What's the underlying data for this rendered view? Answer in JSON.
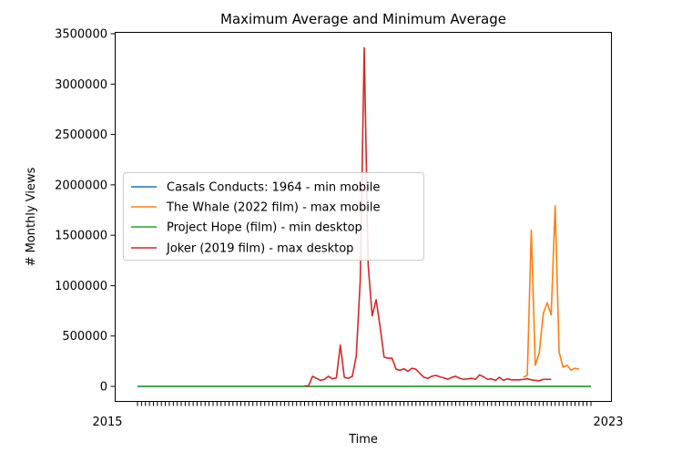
{
  "chart_data": {
    "type": "line",
    "title": "Maximum Average and Minimum Average",
    "xlabel": "Time",
    "ylabel": "# Monthly Views",
    "ylim": [
      -100000,
      3520000
    ],
    "yticks": [
      0,
      500000,
      1000000,
      1500000,
      2000000,
      2500000,
      3000000,
      3500000
    ],
    "ytick_labels": [
      "0",
      "500000",
      "1000000",
      "1500000",
      "2000000",
      "2500000",
      "3000000",
      "3500000"
    ],
    "x_count": 115,
    "x_first_label": "2015",
    "x_last_label": "2023",
    "grid": false,
    "legend_position": "center-left",
    "series": [
      {
        "name": "Casals Conducts: 1964 - min mobile",
        "color": "#1f77b4",
        "start": 0,
        "values": [
          0,
          0,
          0,
          0,
          0,
          0,
          0,
          0,
          0,
          0,
          0,
          0,
          0,
          0,
          0,
          0,
          0,
          0,
          0,
          0,
          0,
          0,
          0,
          0,
          0,
          0,
          0,
          0,
          0,
          0,
          0,
          0,
          0,
          0,
          0,
          0,
          0,
          0,
          0,
          0,
          0,
          0,
          0,
          0,
          0,
          0,
          0,
          0,
          0,
          0,
          0,
          0,
          0,
          0,
          0,
          0,
          0,
          0,
          0,
          0,
          0,
          0,
          0,
          0,
          0,
          0,
          0,
          0,
          0,
          0,
          0,
          0,
          0,
          0,
          0,
          0,
          0,
          0,
          0,
          0,
          0,
          0,
          0,
          0,
          0,
          0,
          0,
          0,
          0,
          0,
          0,
          0,
          0,
          0,
          0,
          0,
          0,
          0,
          0,
          0,
          0,
          0,
          0,
          0,
          0,
          0,
          0,
          0,
          0,
          0,
          0,
          0,
          0,
          0,
          0
        ]
      },
      {
        "name": "The Whale (2022 film) - max mobile",
        "color": "#ff7f0e",
        "start": 97,
        "values": [
          90000,
          110000,
          1550000,
          210000,
          330000,
          720000,
          830000,
          710000,
          1790000,
          340000,
          190000,
          210000,
          160000,
          180000,
          170000
        ]
      },
      {
        "name": "Project Hope (film) - min desktop",
        "color": "#2ca02c",
        "start": 0,
        "values": [
          0,
          0,
          0,
          0,
          0,
          0,
          0,
          0,
          0,
          0,
          0,
          0,
          0,
          0,
          0,
          0,
          0,
          0,
          0,
          0,
          0,
          0,
          0,
          0,
          0,
          0,
          0,
          0,
          0,
          0,
          0,
          0,
          0,
          0,
          0,
          0,
          0,
          0,
          0,
          0,
          0,
          0,
          0,
          0,
          0,
          0,
          0,
          0,
          0,
          0,
          0,
          0,
          0,
          0,
          0,
          0,
          0,
          0,
          0,
          0,
          0,
          0,
          0,
          0,
          0,
          0,
          0,
          0,
          0,
          0,
          0,
          0,
          0,
          0,
          0,
          0,
          0,
          0,
          0,
          0,
          0,
          0,
          0,
          0,
          0,
          0,
          0,
          0,
          0,
          0,
          0,
          0,
          0,
          0,
          0,
          0,
          0,
          0,
          0,
          0,
          0,
          0,
          0,
          0,
          0,
          0,
          0,
          0,
          0,
          0,
          0,
          0,
          0,
          0,
          0
        ]
      },
      {
        "name": "Joker (2019 film) - max desktop",
        "color": "#d62728",
        "start": 42,
        "values": [
          5000,
          5000,
          100000,
          80000,
          60000,
          70000,
          100000,
          75000,
          85000,
          410000,
          90000,
          80000,
          100000,
          300000,
          1050000,
          3360000,
          1200000,
          700000,
          860000,
          590000,
          290000,
          280000,
          280000,
          170000,
          160000,
          175000,
          150000,
          180000,
          170000,
          130000,
          90000,
          80000,
          100000,
          110000,
          95000,
          85000,
          70000,
          90000,
          100000,
          80000,
          70000,
          75000,
          80000,
          70000,
          115000,
          95000,
          70000,
          75000,
          60000,
          90000,
          60000,
          75000,
          65000,
          65000,
          65000,
          70000,
          75000,
          65000,
          60000,
          55000,
          70000,
          70000,
          70000
        ]
      }
    ]
  }
}
